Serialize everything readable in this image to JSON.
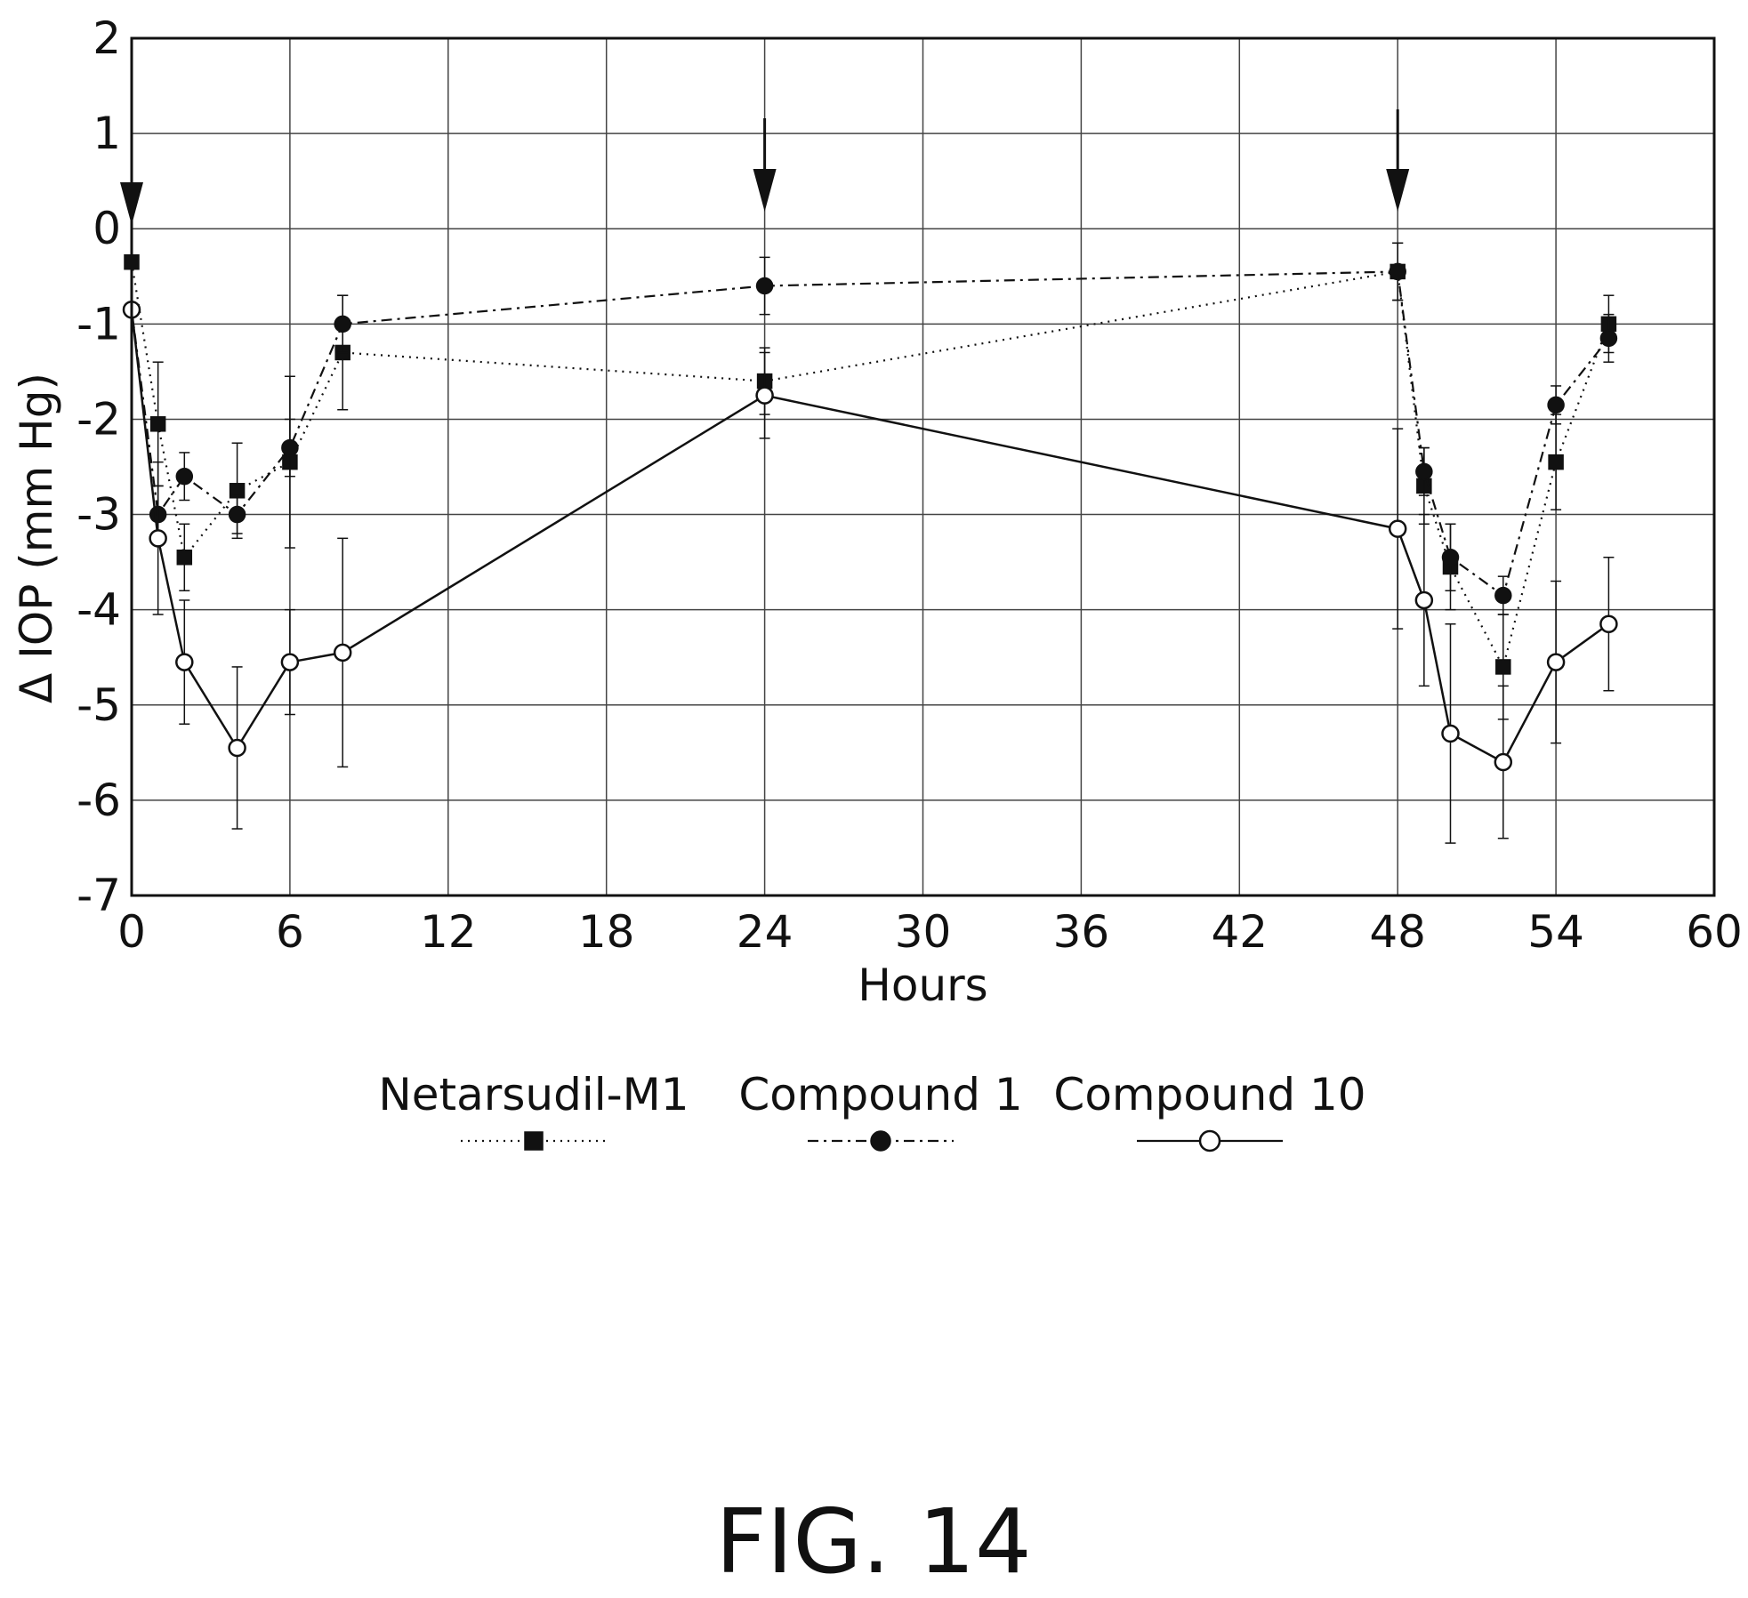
{
  "figure_label": "FIG. 14",
  "chart_data": {
    "type": "line",
    "title": "",
    "xlabel": "Hours",
    "ylabel": "Δ IOP (mm Hg)",
    "xlim": [
      0,
      60
    ],
    "ylim": [
      -7,
      2
    ],
    "xticks": [
      "0",
      "6",
      "12",
      "18",
      "24",
      "30",
      "36",
      "42",
      "48",
      "54",
      "60"
    ],
    "yticks": [
      "2",
      "1",
      "0",
      "-1",
      "-2",
      "-3",
      "-4",
      "-5",
      "-6",
      "-7"
    ],
    "grid": true,
    "legend_position": "bottom",
    "dosing_arrows_x": [
      0,
      24,
      48
    ],
    "series": [
      {
        "name": "Netarsudil-M1",
        "line_style": "dotted",
        "marker": "filled-square",
        "x": [
          0,
          1,
          2,
          4,
          6,
          8,
          24,
          48,
          49,
          50,
          52,
          54,
          56
        ],
        "y": [
          -0.35,
          -2.05,
          -3.45,
          -2.75,
          -2.45,
          -1.3,
          -1.6,
          -0.45,
          -2.7,
          -3.55,
          -4.6,
          -2.45,
          -1.0
        ],
        "err": [
          0,
          0.65,
          0.35,
          0.5,
          0.9,
          0.6,
          0.35,
          0.3,
          0.4,
          0.45,
          0.55,
          0.5,
          0.3
        ]
      },
      {
        "name": "Compound 1",
        "line_style": "dash-dot",
        "marker": "filled-circle",
        "x": [
          0,
          1,
          2,
          4,
          6,
          8,
          24,
          48,
          49,
          50,
          52,
          54,
          56
        ],
        "y": [
          -0.85,
          -3.0,
          -2.6,
          -3.0,
          -2.3,
          -1.0,
          -0.6,
          -0.45,
          -2.55,
          -3.45,
          -3.85,
          -1.85,
          -1.15
        ],
        "err": [
          0,
          0.3,
          0.25,
          0.2,
          0.3,
          0.3,
          0.3,
          0.3,
          0.25,
          0.35,
          0.2,
          0.2,
          0.25
        ]
      },
      {
        "name": "Compound 10",
        "line_style": "solid",
        "marker": "open-circle",
        "x": [
          0,
          1,
          2,
          4,
          6,
          8,
          24,
          48,
          49,
          50,
          52,
          54,
          56
        ],
        "y": [
          -0.85,
          -3.25,
          -4.55,
          -5.45,
          -4.55,
          -4.45,
          -1.75,
          -3.15,
          -3.9,
          -5.3,
          -5.6,
          -4.55,
          -4.15
        ],
        "err": [
          0,
          0.8,
          0.65,
          0.85,
          0.55,
          1.2,
          0.45,
          1.05,
          0.9,
          1.15,
          0.8,
          0.85,
          0.7
        ]
      }
    ]
  }
}
